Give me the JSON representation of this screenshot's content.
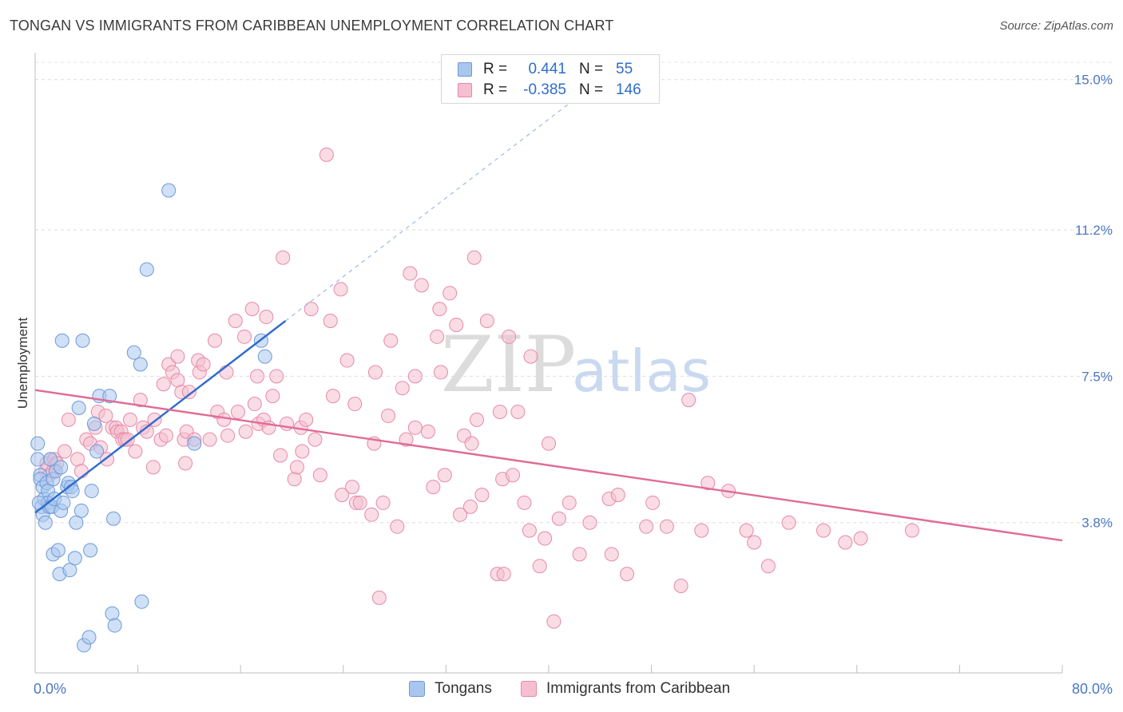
{
  "title": "TONGAN VS IMMIGRANTS FROM CARIBBEAN UNEMPLOYMENT CORRELATION CHART",
  "source": "Source: ZipAtlas.com",
  "watermark": {
    "zip": "ZIP",
    "atlas": "atlas"
  },
  "legend": {
    "rows": [
      {
        "r_label": "R =",
        "r_value": "0.441",
        "n_label": "N =",
        "n_value": "55",
        "color": "#a9c6ee",
        "border": "#6e9ad8"
      },
      {
        "r_label": "R =",
        "r_value": "-0.385",
        "n_label": "N =",
        "n_value": "146",
        "color": "#f6bfd0",
        "border": "#e58aa8"
      }
    ]
  },
  "bottom_legend": [
    {
      "label": "Tongans",
      "color": "#a9c6ee",
      "border": "#6e9ad8"
    },
    {
      "label": "Immigrants from Caribbean",
      "color": "#f6bfd0",
      "border": "#e58aa8"
    }
  ],
  "x_axis": {
    "min_label": "0.0%",
    "max_label": "80.0%"
  },
  "chart_data": {
    "type": "scatter",
    "title": "TONGAN VS IMMIGRANTS FROM CARIBBEAN UNEMPLOYMENT CORRELATION CHART",
    "xlabel": "",
    "ylabel": "Unemployment",
    "xlim": [
      0,
      80
    ],
    "ylim": [
      0,
      15.6
    ],
    "y_ticks": [
      {
        "value": 3.8,
        "label": "3.8%"
      },
      {
        "value": 7.5,
        "label": "7.5%"
      },
      {
        "value": 11.2,
        "label": "11.2%"
      },
      {
        "value": 15.0,
        "label": "15.0%"
      }
    ],
    "grid": true,
    "series": [
      {
        "name": "Tongans",
        "color": "#a9c6ee",
        "stroke": "#6e9ad8",
        "line_color": "#2f6ccc",
        "trend": {
          "x0": 0.0,
          "y0": 4.05,
          "x1": 19.5,
          "y1": 8.9,
          "x_dash_end": 42.0
        },
        "points": [
          [
            0.2,
            5.8
          ],
          [
            0.2,
            5.4
          ],
          [
            0.4,
            5.0
          ],
          [
            0.4,
            4.9
          ],
          [
            0.5,
            4.2
          ],
          [
            0.6,
            4.7
          ],
          [
            0.6,
            4.0
          ],
          [
            0.7,
            4.4
          ],
          [
            0.8,
            3.8
          ],
          [
            0.9,
            4.8
          ],
          [
            1.0,
            4.6
          ],
          [
            1.0,
            4.3
          ],
          [
            1.1,
            4.2
          ],
          [
            1.2,
            5.4
          ],
          [
            1.3,
            4.2
          ],
          [
            1.4,
            4.9
          ],
          [
            1.4,
            3.0
          ],
          [
            1.5,
            4.4
          ],
          [
            1.6,
            5.1
          ],
          [
            1.8,
            3.1
          ],
          [
            1.9,
            2.5
          ],
          [
            2.0,
            5.2
          ],
          [
            2.0,
            4.1
          ],
          [
            2.1,
            8.4
          ],
          [
            2.2,
            4.3
          ],
          [
            2.5,
            4.7
          ],
          [
            2.6,
            4.8
          ],
          [
            2.7,
            2.6
          ],
          [
            2.8,
            4.7
          ],
          [
            2.9,
            4.6
          ],
          [
            3.1,
            2.9
          ],
          [
            3.2,
            3.8
          ],
          [
            3.4,
            6.7
          ],
          [
            3.6,
            4.1
          ],
          [
            3.7,
            8.4
          ],
          [
            3.8,
            0.7
          ],
          [
            4.2,
            0.9
          ],
          [
            4.3,
            3.1
          ],
          [
            4.4,
            4.6
          ],
          [
            4.6,
            6.3
          ],
          [
            4.8,
            5.6
          ],
          [
            5.0,
            7.0
          ],
          [
            5.8,
            7.0
          ],
          [
            6.0,
            1.5
          ],
          [
            6.1,
            3.9
          ],
          [
            6.2,
            1.2
          ],
          [
            7.7,
            8.1
          ],
          [
            8.2,
            7.8
          ],
          [
            8.3,
            1.8
          ],
          [
            8.7,
            10.2
          ],
          [
            10.4,
            12.2
          ],
          [
            12.4,
            5.8
          ],
          [
            17.6,
            8.4
          ],
          [
            17.9,
            8.0
          ],
          [
            0.3,
            4.3
          ]
        ]
      },
      {
        "name": "Immigrants from Caribbean",
        "color": "#f6bfd0",
        "stroke": "#e58aa8",
        "line_color": "#e06b96",
        "trend": {
          "x0": 0.0,
          "y0": 7.15,
          "x1": 80.0,
          "y1": 3.35
        },
        "points": [
          [
            0.8,
            5.1
          ],
          [
            0.9,
            5.3
          ],
          [
            1.1,
            5.0
          ],
          [
            1.2,
            5.4
          ],
          [
            1.4,
            5.1
          ],
          [
            1.5,
            5.4
          ],
          [
            1.7,
            5.3
          ],
          [
            2.3,
            5.6
          ],
          [
            2.6,
            6.4
          ],
          [
            3.3,
            5.4
          ],
          [
            3.6,
            5.1
          ],
          [
            4.0,
            5.9
          ],
          [
            4.3,
            5.8
          ],
          [
            4.7,
            6.2
          ],
          [
            4.9,
            6.6
          ],
          [
            5.1,
            5.7
          ],
          [
            5.5,
            6.5
          ],
          [
            5.6,
            5.4
          ],
          [
            6.0,
            6.2
          ],
          [
            6.3,
            6.2
          ],
          [
            6.4,
            6.1
          ],
          [
            6.7,
            6.1
          ],
          [
            6.8,
            5.9
          ],
          [
            7.0,
            5.9
          ],
          [
            7.2,
            5.9
          ],
          [
            7.4,
            6.4
          ],
          [
            7.8,
            5.6
          ],
          [
            8.2,
            6.9
          ],
          [
            8.4,
            6.2
          ],
          [
            8.7,
            6.1
          ],
          [
            9.2,
            5.2
          ],
          [
            9.3,
            6.4
          ],
          [
            9.8,
            5.9
          ],
          [
            10.0,
            7.3
          ],
          [
            10.2,
            6.0
          ],
          [
            10.4,
            7.8
          ],
          [
            10.7,
            7.6
          ],
          [
            11.1,
            7.4
          ],
          [
            11.1,
            8.0
          ],
          [
            11.4,
            7.1
          ],
          [
            11.6,
            5.9
          ],
          [
            11.7,
            5.3
          ],
          [
            11.8,
            6.1
          ],
          [
            12.0,
            7.1
          ],
          [
            12.4,
            5.9
          ],
          [
            12.7,
            7.9
          ],
          [
            12.8,
            7.6
          ],
          [
            13.1,
            7.8
          ],
          [
            13.6,
            5.9
          ],
          [
            14.0,
            8.4
          ],
          [
            14.2,
            6.6
          ],
          [
            14.7,
            6.4
          ],
          [
            14.9,
            7.6
          ],
          [
            15.0,
            6.0
          ],
          [
            15.6,
            8.9
          ],
          [
            15.8,
            6.6
          ],
          [
            16.3,
            8.5
          ],
          [
            16.4,
            6.1
          ],
          [
            16.9,
            9.2
          ],
          [
            17.1,
            6.8
          ],
          [
            17.3,
            7.5
          ],
          [
            17.4,
            6.3
          ],
          [
            17.8,
            6.4
          ],
          [
            18.0,
            9.0
          ],
          [
            18.2,
            6.2
          ],
          [
            18.5,
            7.0
          ],
          [
            18.8,
            7.5
          ],
          [
            19.1,
            5.5
          ],
          [
            19.3,
            10.5
          ],
          [
            19.6,
            6.3
          ],
          [
            20.2,
            4.9
          ],
          [
            20.4,
            5.2
          ],
          [
            20.7,
            6.2
          ],
          [
            20.8,
            5.6
          ],
          [
            21.1,
            6.4
          ],
          [
            21.5,
            9.2
          ],
          [
            21.8,
            5.9
          ],
          [
            22.2,
            5.0
          ],
          [
            22.7,
            13.1
          ],
          [
            23.0,
            8.9
          ],
          [
            23.2,
            7.0
          ],
          [
            23.8,
            9.7
          ],
          [
            23.9,
            4.5
          ],
          [
            24.3,
            7.9
          ],
          [
            24.7,
            4.7
          ],
          [
            24.9,
            6.8
          ],
          [
            25.0,
            4.3
          ],
          [
            25.3,
            4.3
          ],
          [
            26.2,
            4.0
          ],
          [
            26.4,
            5.8
          ],
          [
            26.5,
            7.6
          ],
          [
            26.8,
            1.9
          ],
          [
            27.1,
            4.3
          ],
          [
            27.5,
            6.5
          ],
          [
            27.7,
            8.4
          ],
          [
            28.2,
            3.7
          ],
          [
            28.6,
            7.2
          ],
          [
            28.9,
            5.9
          ],
          [
            29.2,
            10.1
          ],
          [
            29.6,
            7.5
          ],
          [
            30.1,
            9.8
          ],
          [
            30.6,
            6.1
          ],
          [
            31.0,
            4.7
          ],
          [
            31.3,
            8.5
          ],
          [
            31.5,
            9.2
          ],
          [
            31.6,
            7.6
          ],
          [
            31.9,
            5.0
          ],
          [
            32.3,
            9.6
          ],
          [
            32.8,
            8.8
          ],
          [
            33.1,
            4.0
          ],
          [
            33.4,
            6.0
          ],
          [
            33.9,
            4.2
          ],
          [
            34.2,
            10.5
          ],
          [
            34.4,
            6.4
          ],
          [
            34.8,
            4.5
          ],
          [
            35.2,
            8.9
          ],
          [
            36.2,
            6.6
          ],
          [
            36.4,
            4.9
          ],
          [
            36.9,
            8.5
          ],
          [
            37.2,
            5.0
          ],
          [
            37.6,
            6.6
          ],
          [
            38.1,
            4.3
          ],
          [
            38.5,
            3.6
          ],
          [
            38.6,
            8.0
          ],
          [
            39.3,
            2.7
          ],
          [
            39.7,
            3.4
          ],
          [
            40.0,
            5.8
          ],
          [
            40.4,
            1.3
          ],
          [
            40.8,
            3.9
          ],
          [
            41.6,
            4.3
          ],
          [
            42.4,
            3.0
          ],
          [
            43.2,
            3.8
          ],
          [
            44.7,
            4.4
          ],
          [
            44.9,
            3.0
          ],
          [
            45.4,
            4.5
          ],
          [
            46.1,
            2.5
          ],
          [
            47.6,
            3.7
          ],
          [
            48.1,
            4.3
          ],
          [
            49.2,
            3.7
          ],
          [
            50.9,
            6.9
          ],
          [
            50.3,
            2.2
          ],
          [
            51.9,
            3.6
          ],
          [
            52.4,
            4.8
          ],
          [
            54.0,
            4.6
          ],
          [
            55.4,
            3.6
          ],
          [
            56.0,
            3.3
          ],
          [
            57.1,
            2.7
          ],
          [
            58.7,
            3.8
          ],
          [
            61.4,
            3.6
          ],
          [
            63.1,
            3.3
          ],
          [
            64.3,
            3.4
          ],
          [
            68.3,
            3.6
          ],
          [
            36.0,
            2.5
          ],
          [
            29.6,
            6.2
          ],
          [
            34.0,
            5.8
          ],
          [
            36.5,
            2.5
          ]
        ]
      }
    ]
  }
}
